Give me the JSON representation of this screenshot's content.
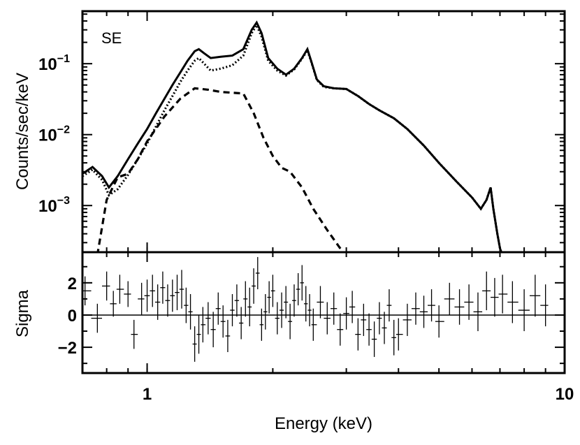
{
  "chart_data": [
    {
      "type": "line",
      "panel": "spectrum",
      "annotation": "SE",
      "xlabel": "Energy (keV)",
      "ylabel": "Counts/sec/keV",
      "xscale": "log",
      "yscale": "log",
      "xlim": [
        0.7,
        10
      ],
      "ylim": [
        0.00022,
        0.55
      ],
      "x_tick_labels": [
        "1",
        "10"
      ],
      "y_tick_labels": [
        {
          "base": "10",
          "exp": "−1"
        },
        {
          "base": "10",
          "exp": "−2"
        },
        {
          "base": "10",
          "exp": "−3"
        }
      ],
      "series": [
        {
          "style": "solid",
          "x": [
            0.7,
            0.74,
            0.78,
            0.81,
            0.85,
            0.9,
            0.95,
            1.0,
            1.05,
            1.1,
            1.15,
            1.2,
            1.25,
            1.3,
            1.33,
            1.37,
            1.42,
            1.5,
            1.6,
            1.7,
            1.78,
            1.83,
            1.88,
            1.95,
            2.05,
            2.15,
            2.25,
            2.35,
            2.42,
            2.47,
            2.55,
            2.65,
            2.8,
            3.0,
            3.2,
            3.4,
            3.6,
            3.9,
            4.2,
            4.6,
            5.0,
            5.5,
            6.0,
            6.3,
            6.5,
            6.65,
            6.75,
            6.9,
            7.0,
            7.2
          ],
          "y": [
            0.0028,
            0.0035,
            0.0026,
            0.0018,
            0.0026,
            0.0045,
            0.0075,
            0.012,
            0.02,
            0.032,
            0.05,
            0.075,
            0.11,
            0.15,
            0.16,
            0.14,
            0.12,
            0.125,
            0.13,
            0.16,
            0.3,
            0.38,
            0.27,
            0.12,
            0.085,
            0.07,
            0.085,
            0.12,
            0.16,
            0.11,
            0.06,
            0.048,
            0.045,
            0.044,
            0.035,
            0.027,
            0.022,
            0.017,
            0.012,
            0.007,
            0.004,
            0.0022,
            0.0013,
            0.0009,
            0.0012,
            0.0018,
            0.0009,
            0.0004,
            0.00025,
            0.00015
          ]
        },
        {
          "style": "dotted",
          "x": [
            0.7,
            0.74,
            0.78,
            0.81,
            0.85,
            0.9,
            0.95,
            1.0,
            1.05,
            1.1,
            1.15,
            1.2,
            1.25,
            1.3,
            1.33,
            1.37,
            1.42,
            1.5,
            1.6,
            1.7,
            1.78,
            1.83,
            1.88,
            1.95,
            2.05,
            2.15,
            2.25,
            2.35,
            2.42,
            2.47,
            2.55,
            2.65,
            2.8,
            3.0,
            3.2,
            3.4,
            3.6,
            3.9,
            4.2,
            4.6,
            5.0,
            5.5,
            6.0,
            6.3,
            6.5,
            6.65,
            6.75,
            6.9,
            7.0,
            7.2
          ],
          "y": [
            0.0026,
            0.0032,
            0.0023,
            0.0014,
            0.0017,
            0.0027,
            0.0045,
            0.0075,
            0.013,
            0.022,
            0.035,
            0.055,
            0.08,
            0.11,
            0.12,
            0.1,
            0.08,
            0.085,
            0.095,
            0.13,
            0.27,
            0.35,
            0.24,
            0.11,
            0.08,
            0.068,
            0.083,
            0.118,
            0.155,
            0.108,
            0.059,
            0.047,
            0.045,
            0.044,
            0.035,
            0.027,
            0.022,
            0.017,
            0.012,
            0.007,
            0.004,
            0.0022,
            0.0013,
            0.0009,
            0.0012,
            0.0018,
            0.0009,
            0.0004,
            0.00025,
            0.00015
          ]
        },
        {
          "style": "dashed",
          "x": [
            0.76,
            0.8,
            0.85,
            0.9,
            0.95,
            1.0,
            1.1,
            1.2,
            1.3,
            1.4,
            1.5,
            1.6,
            1.7,
            1.8,
            1.9,
            2.0,
            2.1,
            2.2,
            2.35,
            2.5,
            2.7,
            2.9,
            3.1
          ],
          "y": [
            0.0002,
            0.0012,
            0.0025,
            0.0028,
            0.0045,
            0.008,
            0.018,
            0.032,
            0.045,
            0.043,
            0.04,
            0.039,
            0.038,
            0.02,
            0.009,
            0.005,
            0.0034,
            0.003,
            0.0018,
            0.0009,
            0.00045,
            0.00025,
            0.00015
          ]
        }
      ]
    },
    {
      "type": "scatter",
      "panel": "residuals",
      "xlabel": "Energy (keV)",
      "ylabel": "Sigma",
      "xscale": "log",
      "xlim": [
        0.7,
        10
      ],
      "ylim": [
        -3.6,
        3.9
      ],
      "y_tick_labels": [
        "2",
        "0",
        "−2"
      ],
      "reference_line": 0,
      "x": [
        0.71,
        0.76,
        0.8,
        0.83,
        0.86,
        0.9,
        0.93,
        0.97,
        1.0,
        1.03,
        1.06,
        1.09,
        1.12,
        1.15,
        1.18,
        1.21,
        1.24,
        1.27,
        1.3,
        1.33,
        1.36,
        1.4,
        1.44,
        1.48,
        1.52,
        1.56,
        1.6,
        1.64,
        1.68,
        1.72,
        1.76,
        1.8,
        1.84,
        1.88,
        1.92,
        1.96,
        2.0,
        2.05,
        2.1,
        2.15,
        2.2,
        2.25,
        2.3,
        2.35,
        2.4,
        2.45,
        2.5,
        2.6,
        2.7,
        2.8,
        2.9,
        3.0,
        3.1,
        3.2,
        3.3,
        3.4,
        3.5,
        3.6,
        3.7,
        3.8,
        3.9,
        4.0,
        4.2,
        4.4,
        4.6,
        4.8,
        5.0,
        5.3,
        5.6,
        5.9,
        6.2,
        6.5,
        6.8,
        7.1,
        7.5,
        8.0,
        8.5,
        9.0
      ],
      "y": [
        1.5,
        -0.2,
        1.8,
        0.7,
        1.6,
        1.3,
        -1.2,
        1.0,
        1.2,
        1.5,
        0.8,
        1.7,
        0.9,
        1.2,
        1.4,
        1.6,
        0.6,
        0.2,
        -1.8,
        -1.2,
        -0.6,
        -0.2,
        -0.9,
        0.4,
        -0.4,
        -1.3,
        0.3,
        0.9,
        -0.5,
        1.0,
        0.5,
        1.8,
        2.6,
        -0.6,
        0.2,
        1.1,
        1.5,
        -0.2,
        0.3,
        0.8,
        -0.4,
        0.9,
        1.6,
        2.0,
        0.7,
        0.3,
        -0.6,
        0.8,
        -0.2,
        0.4,
        -0.9,
        0.1,
        0.5,
        -1.2,
        -0.3,
        -0.9,
        -1.5,
        -0.2,
        -0.8,
        0.6,
        -1.4,
        -1.2,
        -0.3,
        0.4,
        0.2,
        0.6,
        -0.4,
        1.0,
        0.5,
        0.8,
        0.2,
        1.5,
        1.1,
        1.3,
        0.8,
        0.3,
        1.2,
        0.6
      ],
      "yerr": [
        0.9,
        0.9,
        0.9,
        0.8,
        0.9,
        0.8,
        0.9,
        1.0,
        1.0,
        1.0,
        1.1,
        1.0,
        1.0,
        1.0,
        1.1,
        1.2,
        1.1,
        1.1,
        1.1,
        1.2,
        1.1,
        1.0,
        1.1,
        1.0,
        1.0,
        1.0,
        1.0,
        1.0,
        1.0,
        1.1,
        1.2,
        1.1,
        1.0,
        1.0,
        1.1,
        1.0,
        1.0,
        1.0,
        1.1,
        1.0,
        1.1,
        1.0,
        1.0,
        1.1,
        1.1,
        1.0,
        1.0,
        1.0,
        1.0,
        1.0,
        1.0,
        1.0,
        1.0,
        1.0,
        1.0,
        1.0,
        1.1,
        1.0,
        1.0,
        1.0,
        1.1,
        1.0,
        1.0,
        1.0,
        1.0,
        1.0,
        1.0,
        1.0,
        1.1,
        1.1,
        1.2,
        1.2,
        1.2,
        1.2,
        1.3,
        1.3,
        1.3,
        1.3
      ]
    }
  ]
}
